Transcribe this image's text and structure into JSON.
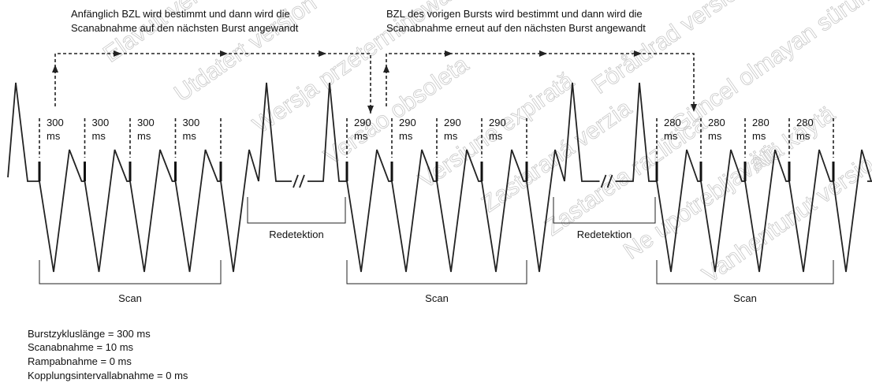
{
  "annotations": {
    "left": [
      "Anfänglich BZL wird bestimmt und dann wird die",
      "Scanabnahme auf den nächsten Burst angewandt"
    ],
    "right": [
      "BZL des vorigen Bursts wird bestimmt und dann wird die",
      "Scanabnahme erneut auf den nächsten Burst angewandt"
    ]
  },
  "bursts": [
    {
      "intervals": [
        {
          "value": "300",
          "unit": "ms"
        },
        {
          "value": "300",
          "unit": "ms"
        },
        {
          "value": "300",
          "unit": "ms"
        },
        {
          "value": "300",
          "unit": "ms"
        }
      ],
      "scan_label": "Scan"
    },
    {
      "intervals": [
        {
          "value": "290",
          "unit": "ms"
        },
        {
          "value": "290",
          "unit": "ms"
        },
        {
          "value": "290",
          "unit": "ms"
        },
        {
          "value": "290",
          "unit": "ms"
        }
      ],
      "scan_label": "Scan"
    },
    {
      "intervals": [
        {
          "value": "280",
          "unit": "ms"
        },
        {
          "value": "280",
          "unit": "ms"
        },
        {
          "value": "280",
          "unit": "ms"
        },
        {
          "value": "280",
          "unit": "ms"
        }
      ],
      "scan_label": "Scan"
    }
  ],
  "redetection_labels": [
    "Redetektion",
    "Redetektion"
  ],
  "settings": [
    "Burstzykluslänge = 300 ms",
    "Scanabnahme = 10 ms",
    "Rampabnahme = 0 ms",
    "Kopplungsintervallabnahme = 0 ms"
  ],
  "watermarks": [
    "Elavult verzió",
    "Utdatert versjon",
    "Wersja przeterminowana",
    "Versão obsoleta",
    "Versiune expirată",
    "Zastaraná verzia",
    "Zastarela različica",
    "Ne upotrebljavati",
    "Vanhentunut versio",
    "Föråldrad version",
    "Güncel olmayan sürüm",
    "Älä käytä"
  ]
}
